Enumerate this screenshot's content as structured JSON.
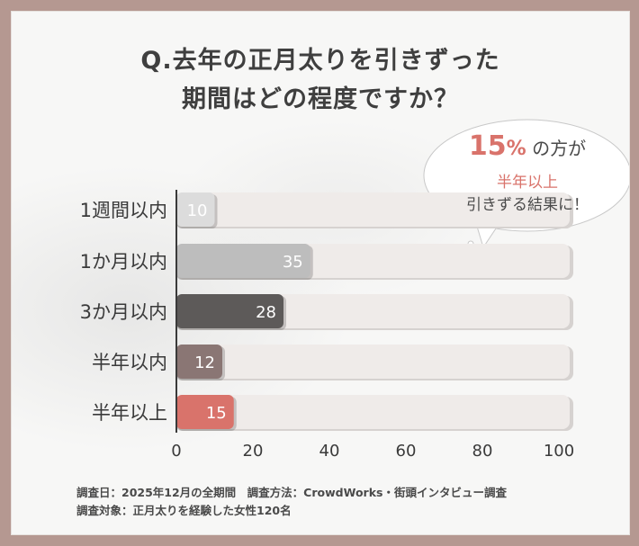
{
  "title_line1": "Q.去年の正月太りを引きずった",
  "title_line2": "期間はどの程度ですか？",
  "callout": {
    "percent": "15",
    "percent_unit": "%",
    "line1_suffix": "の方が",
    "line2": "半年以上",
    "line3": "引きずる結果に！"
  },
  "footer": {
    "line1": "調査日：2025年12月の全期間　調査方法：CrowdWorks・街頭インタビュー調査",
    "line2": "調査対象：正月太りを経験した女性120名"
  },
  "chart_data": {
    "type": "bar",
    "orientation": "horizontal",
    "categories": [
      "1週間以内",
      "1か月以内",
      "3か月以内",
      "半年以内",
      "半年以上"
    ],
    "values": [
      10,
      35,
      28,
      12,
      15
    ],
    "colors": [
      "#dcdcdc",
      "#bdbdbd",
      "#5d5a59",
      "#8a7674",
      "#d9736b"
    ],
    "label_colors": [
      "#ffffff",
      "#ffffff",
      "#ffffff",
      "#ffffff",
      "#ffffff"
    ],
    "xlim": [
      0,
      100
    ],
    "xticks": [
      0,
      20,
      40,
      60,
      80,
      100
    ],
    "track_color": "#efebe9",
    "grid": false
  }
}
